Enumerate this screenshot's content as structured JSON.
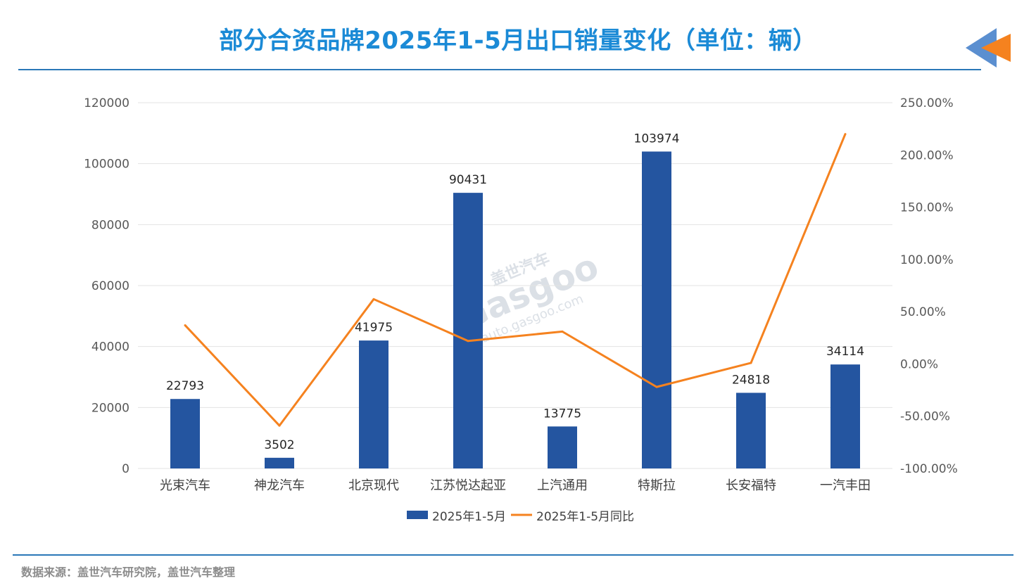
{
  "title": "部分合资品牌2025年1-5月出口销量变化（单位：辆）",
  "source": "数据来源：盖世汽车研究院，盖世汽车整理",
  "watermark": {
    "brand_cn": "盖世汽车",
    "brand_en": "Gasgoo",
    "url": "auto.gasgoo.com"
  },
  "colors": {
    "bar": "#2455a0",
    "line": "#f5821f",
    "title": "#1b8ad6",
    "rule": "#2a78b8",
    "grid": "#e3e3e3"
  },
  "chart_data": {
    "type": "bar",
    "categories": [
      "光束汽车",
      "神龙汽车",
      "北京现代",
      "江苏悦达起亚",
      "上汽通用",
      "特斯拉",
      "长安福特",
      "一汽丰田"
    ],
    "series": [
      {
        "name": "2025年1-5月",
        "type": "bar",
        "axis": "left",
        "values": [
          22793,
          3502,
          41975,
          90431,
          13775,
          103974,
          24818,
          34114
        ]
      },
      {
        "name": "2025年1-5月同比",
        "type": "line",
        "axis": "right",
        "values": [
          37,
          -59,
          62,
          22,
          31,
          -22,
          1,
          220
        ]
      }
    ],
    "left_axis": {
      "min": 0,
      "max": 120000,
      "ticks": [
        "0",
        "20000",
        "40000",
        "60000",
        "80000",
        "100000",
        "120000"
      ]
    },
    "right_axis": {
      "min": -100,
      "max": 250,
      "unit": "%",
      "ticks": [
        "-100.00%",
        "-50.00%",
        "0.00%",
        "50.00%",
        "100.00%",
        "150.00%",
        "200.00%",
        "250.00%"
      ]
    },
    "grid": true,
    "legend_position": "bottom"
  }
}
